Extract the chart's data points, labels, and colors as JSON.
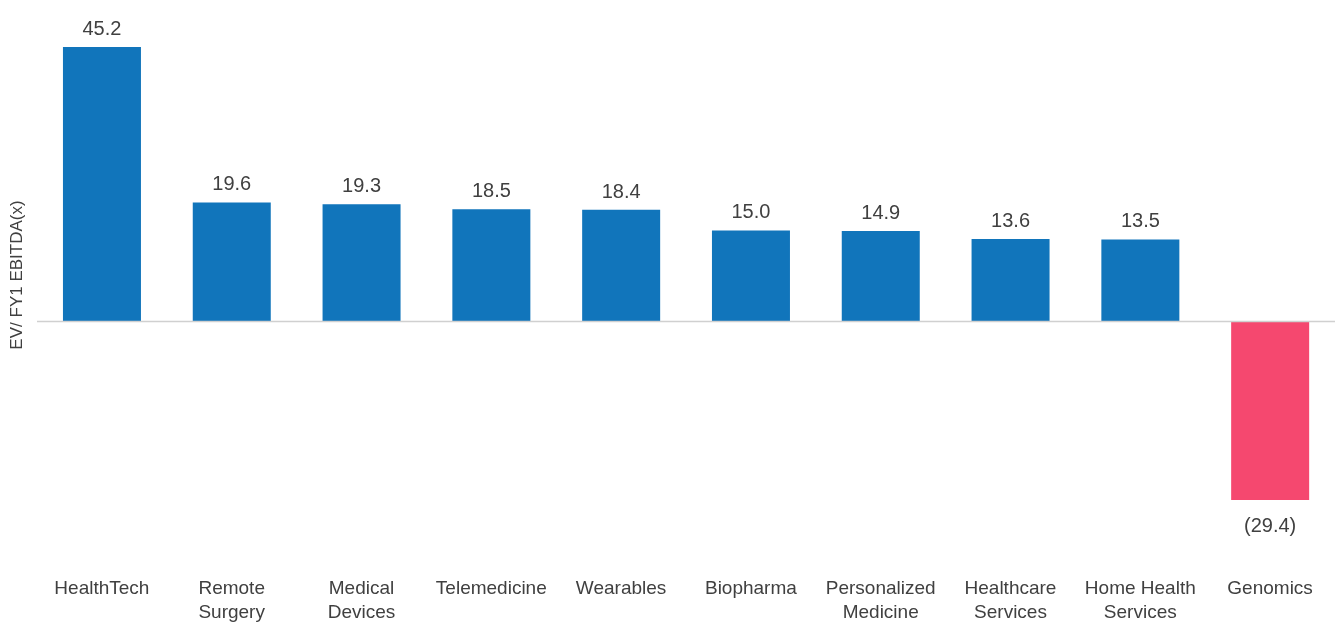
{
  "chart_data": {
    "type": "bar",
    "ylabel": "EV/ FY1 EBITDA(x)",
    "categories": [
      "HealthTech",
      "Remote Surgery",
      "Medical Devices",
      "Telemedicine",
      "Wearables",
      "Biopharma",
      "Personalized Medicine",
      "Healthcare Services",
      "Home Health Services",
      "Genomics"
    ],
    "values": [
      45.2,
      19.6,
      19.3,
      18.5,
      18.4,
      15.0,
      14.9,
      13.6,
      13.5,
      -29.4
    ],
    "value_labels": [
      "45.2",
      "19.6",
      "19.3",
      "18.5",
      "18.4",
      "15.0",
      "14.9",
      "13.6",
      "13.5",
      "(29.4)"
    ],
    "colors": [
      "#1175bb",
      "#1175bb",
      "#1175bb",
      "#1175bb",
      "#1175bb",
      "#1175bb",
      "#1175bb",
      "#1175bb",
      "#1175bb",
      "#f5486f"
    ],
    "grid": false,
    "legend": false
  }
}
